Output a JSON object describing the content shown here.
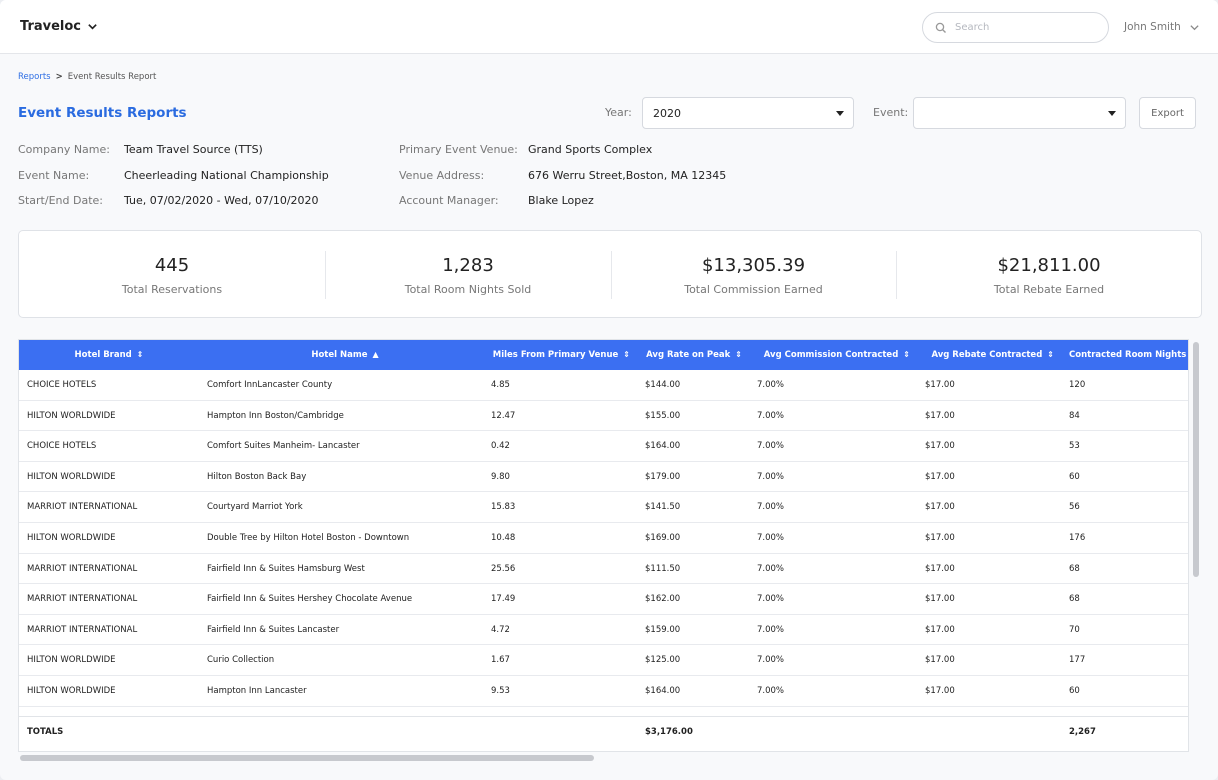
{
  "app": {
    "name": "Traveloc"
  },
  "search": {
    "placeholder": "Search"
  },
  "user": {
    "name": "John Smith"
  },
  "breadcrumb": {
    "parent": "Reports",
    "separator": ">",
    "current": "Event Results Report"
  },
  "page": {
    "title": "Event Results Reports"
  },
  "filters": {
    "year_label": "Year:",
    "year_value": "2020",
    "event_label": "Event:",
    "event_value": "",
    "export_label": "Export"
  },
  "details": {
    "company_label": "Company Name:",
    "company_value": "Team Travel Source (TTS)",
    "event_label": "Event Name:",
    "event_value": "Cheerleading National Championship",
    "dates_label": "Start/End Date:",
    "dates_value": "Tue, 07/02/2020 - Wed, 07/10/2020",
    "venue_label": "Primary Event Venue:",
    "venue_value": "Grand Sports Complex",
    "address_label": "Venue Address:",
    "address_value": "676 Werru Street,Boston, MA 12345",
    "manager_label": "Account Manager:",
    "manager_value": "Blake Lopez"
  },
  "summary": [
    {
      "value": "445",
      "label": "Total Reservations"
    },
    {
      "value": "1,283",
      "label": "Total Room Nights Sold"
    },
    {
      "value": "$13,305.39",
      "label": "Total Commission Earned"
    },
    {
      "value": "$21,811.00",
      "label": "Total Rebate Earned"
    }
  ],
  "table": {
    "columns": [
      {
        "label": "Hotel Brand",
        "sort": "⇕"
      },
      {
        "label": "Hotel Name",
        "sort": "▲"
      },
      {
        "label": "Miles From Primary Venue",
        "sort": "⇕"
      },
      {
        "label": "Avg Rate on Peak",
        "sort": "⇕"
      },
      {
        "label": "Avg Commission Contracted",
        "sort": "⇕"
      },
      {
        "label": "Avg Rebate Contracted",
        "sort": "⇕"
      },
      {
        "label": "Contracted Room Nights",
        "sort": ""
      }
    ],
    "rows": [
      [
        "CHOICE HOTELS",
        "Comfort InnLancaster County",
        "4.85",
        "$144.00",
        "7.00%",
        "$17.00",
        "120"
      ],
      [
        "HILTON WORLDWIDE",
        "Hampton Inn Boston/Cambridge",
        "12.47",
        "$155.00",
        "7.00%",
        "$17.00",
        "84"
      ],
      [
        "CHOICE HOTELS",
        "Comfort Suites Manheim- Lancaster",
        "0.42",
        "$164.00",
        "7.00%",
        "$17.00",
        "53"
      ],
      [
        "HILTON WORLDWIDE",
        "Hilton Boston Back Bay",
        "9.80",
        "$179.00",
        "7.00%",
        "$17.00",
        "60"
      ],
      [
        "MARRIOT INTERNATIONAL",
        "Courtyard Marriot York",
        "15.83",
        "$141.50",
        "7.00%",
        "$17.00",
        "56"
      ],
      [
        "HILTON WORLDWIDE",
        "Double Tree by Hilton Hotel Boston - Downtown",
        "10.48",
        "$169.00",
        "7.00%",
        "$17.00",
        "176"
      ],
      [
        "MARRIOT INTERNATIONAL",
        "Fairfield Inn & Suites Hamsburg West",
        "25.56",
        "$111.50",
        "7.00%",
        "$17.00",
        "68"
      ],
      [
        "MARRIOT INTERNATIONAL",
        "Fairfield Inn & Suites Hershey Chocolate Avenue",
        "17.49",
        "$162.00",
        "7.00%",
        "$17.00",
        "68"
      ],
      [
        "MARRIOT INTERNATIONAL",
        "Fairfield Inn & Suites Lancaster",
        "4.72",
        "$159.00",
        "7.00%",
        "$17.00",
        "70"
      ],
      [
        "HILTON WORLDWIDE",
        "Curio Collection",
        "1.67",
        "$125.00",
        "7.00%",
        "$17.00",
        "177"
      ],
      [
        "HILTON WORLDWIDE",
        "Hampton Inn Lancaster",
        "9.53",
        "$164.00",
        "7.00%",
        "$17.00",
        "60"
      ]
    ],
    "totals": {
      "label": "TOTALS",
      "rate": "$3,176.00",
      "nights": "2,267"
    }
  },
  "colors": {
    "accent": "#2a6be0",
    "header": "#3b6ff2"
  },
  "icons": {
    "brand_caret": "chevron-down-icon",
    "search": "search-icon",
    "user_caret": "chevron-down-icon"
  }
}
